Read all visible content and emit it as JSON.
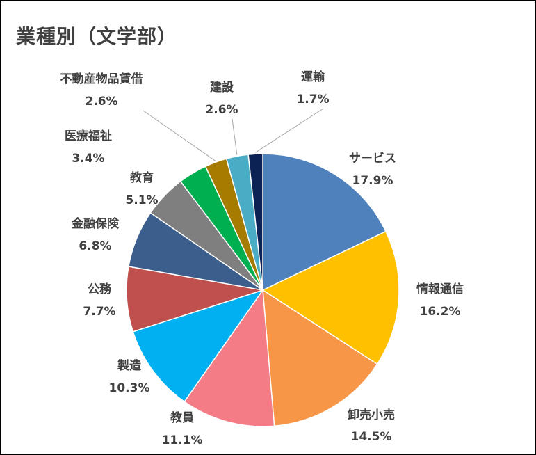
{
  "chart_data": {
    "type": "pie",
    "title": "業種別（文学部）",
    "slices": [
      {
        "label": "サービス",
        "value": 17.9,
        "value_label": "17.9%",
        "color": "#4F81BD"
      },
      {
        "label": "情報通信",
        "value": 16.2,
        "value_label": "16.2%",
        "color": "#FFC000"
      },
      {
        "label": "卸売小売",
        "value": 14.5,
        "value_label": "14.5%",
        "color": "#F79646"
      },
      {
        "label": "教員",
        "value": 11.1,
        "value_label": "11.1%",
        "color": "#F47C86"
      },
      {
        "label": "製造",
        "value": 10.3,
        "value_label": "10.3%",
        "color": "#00B0F0"
      },
      {
        "label": "公務",
        "value": 7.7,
        "value_label": "7.7%",
        "color": "#C0504D"
      },
      {
        "label": "金融保険",
        "value": 6.8,
        "value_label": "6.8%",
        "color": "#3B5E8C"
      },
      {
        "label": "教育",
        "value": 5.1,
        "value_label": "5.1%",
        "color": "#7F7F7F"
      },
      {
        "label": "医療福祉",
        "value": 3.4,
        "value_label": "3.4%",
        "color": "#00B050"
      },
      {
        "label": "不動産物品賃借",
        "value": 2.6,
        "value_label": "2.6%",
        "color": "#A67C00"
      },
      {
        "label": "建設",
        "value": 2.6,
        "value_label": "2.6%",
        "color": "#4BACC6"
      },
      {
        "label": "運輸",
        "value": 1.7,
        "value_label": "1.7%",
        "color": "#0D2254"
      }
    ],
    "start_angle": "12 o'clock",
    "direction": "clockwise",
    "legend": "none",
    "data_labels": "outside (category name and percentage)"
  }
}
